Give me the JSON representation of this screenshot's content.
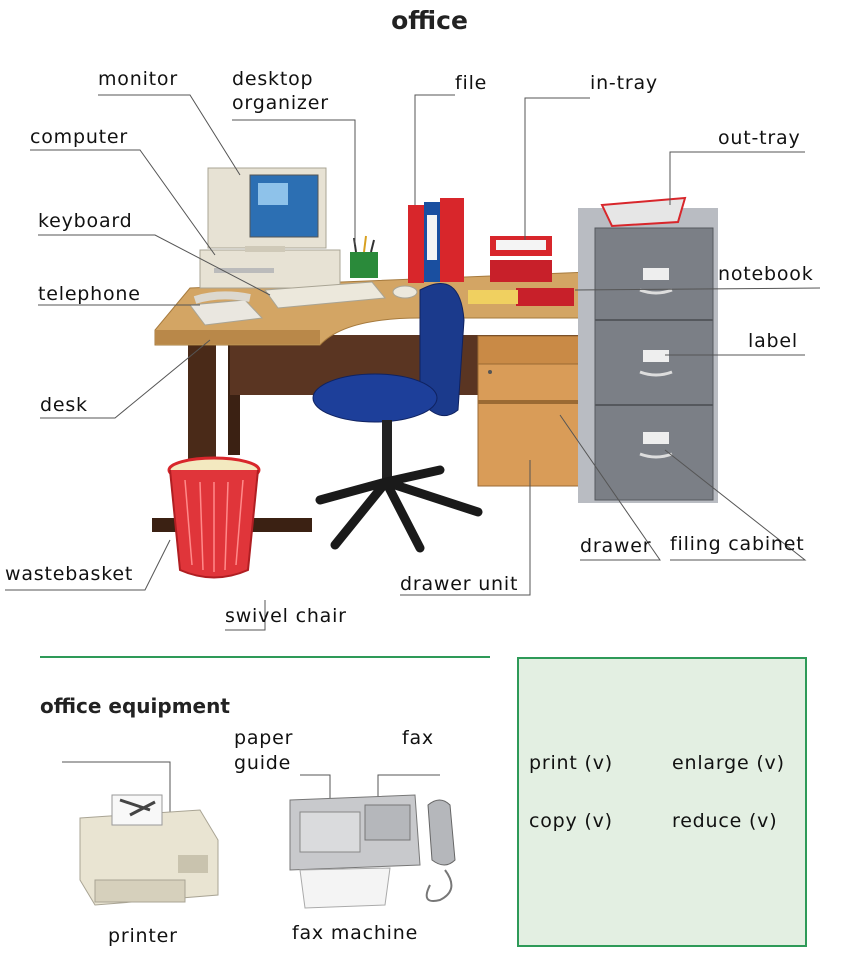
{
  "title": "office",
  "labels": {
    "monitor": "monitor",
    "desktop_organizer_1": "desktop",
    "desktop_organizer_2": "organizer",
    "file": "file",
    "in_tray": "in-tray",
    "out_tray": "out-tray",
    "computer": "computer",
    "keyboard": "keyboard",
    "telephone": "telephone",
    "notebook": "notebook",
    "label": "label",
    "desk": "desk",
    "wastebasket": "wastebasket",
    "drawer": "drawer",
    "filing_cabinet": "filing cabinet",
    "drawer_unit": "drawer unit",
    "swivel_chair": "swivel chair"
  },
  "equipment": {
    "heading": "office equipment",
    "paper_guide_1": "paper",
    "paper_guide_2": "guide",
    "fax": "fax",
    "printer": "printer",
    "fax_machine": "fax machine"
  },
  "verbs": {
    "print": "print (v)",
    "enlarge": "enlarge (v)",
    "copy": "copy (v)",
    "reduce": "reduce (v)"
  },
  "colors": {
    "divider": "#2e9a58",
    "box_fill": "#e3efe2",
    "desk_top": "#d3a564",
    "desk_frame": "#4a2a18",
    "chair": "#1b3a8c",
    "cabinet": "#7b7f86",
    "wastebasket": "#d8262b"
  }
}
